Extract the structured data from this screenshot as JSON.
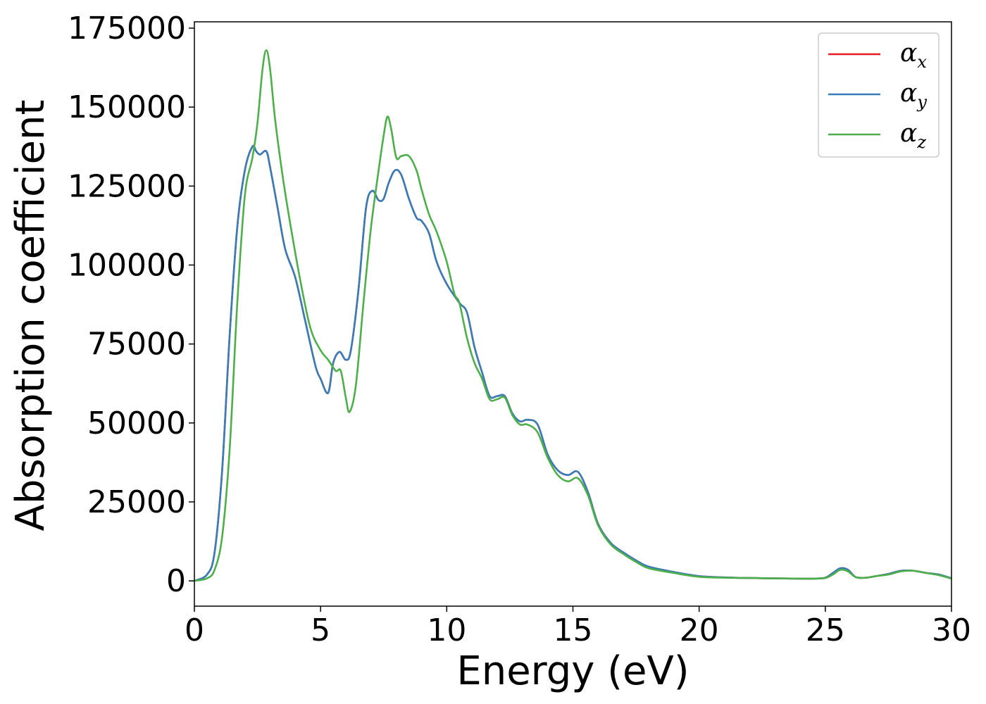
{
  "chart_data": {
    "type": "line",
    "title": "",
    "xlabel": "Energy (eV)",
    "ylabel": "Absorption coefficient",
    "xlim": [
      0,
      30
    ],
    "ylim": [
      -8000,
      177000
    ],
    "xticks": [
      0,
      5,
      10,
      15,
      20,
      25,
      30
    ],
    "yticks": [
      0,
      25000,
      50000,
      75000,
      100000,
      125000,
      150000,
      175000
    ],
    "grid": false,
    "legend_position": "top-right",
    "series": [
      {
        "name": "α_x",
        "legend_symbol": "α",
        "legend_subscript": "x",
        "color": "#e41a1c",
        "x": [
          0,
          0.5,
          0.8,
          1.1,
          1.4,
          1.7,
          2.0,
          2.3,
          2.45,
          2.6,
          2.85,
          3.0,
          3.3,
          3.6,
          4.0,
          4.4,
          4.8,
          5.0,
          5.3,
          5.5,
          5.75,
          6.0,
          6.2,
          6.5,
          6.8,
          7.05,
          7.3,
          7.5,
          7.7,
          7.95,
          8.2,
          8.5,
          8.8,
          9.0,
          9.3,
          9.6,
          10.0,
          10.5,
          10.8,
          11.1,
          11.4,
          11.7,
          12.0,
          12.3,
          12.6,
          12.9,
          13.2,
          13.6,
          14.0,
          14.4,
          14.8,
          15.2,
          15.6,
          16.0,
          16.5,
          17.0,
          17.5,
          18.0,
          19.0,
          20.0,
          21.0,
          22.0,
          23.0,
          24.0,
          24.5,
          25.0,
          25.3,
          25.6,
          25.9,
          26.2,
          26.6,
          27.0,
          27.5,
          28.0,
          28.5,
          29.0,
          29.5,
          30.0
        ],
        "values": [
          0,
          2000,
          9000,
          35000,
          78000,
          112000,
          130000,
          137500,
          136000,
          135000,
          136000,
          131000,
          118000,
          105000,
          96000,
          82000,
          68000,
          64000,
          59500,
          69000,
          72500,
          70000,
          73000,
          92000,
          118000,
          123500,
          120500,
          121000,
          126000,
          130000,
          128500,
          121000,
          115000,
          114000,
          110000,
          101000,
          94000,
          88000,
          85000,
          74000,
          66000,
          58500,
          58500,
          58500,
          53000,
          50500,
          51000,
          49500,
          40000,
          35000,
          33500,
          34500,
          28000,
          18000,
          12000,
          9000,
          6500,
          4500,
          2800,
          1500,
          1100,
          900,
          800,
          700,
          700,
          1000,
          2500,
          4000,
          3500,
          1200,
          1000,
          1500,
          2200,
          3200,
          3200,
          2500,
          2000,
          800
        ]
      },
      {
        "name": "α_y",
        "legend_symbol": "α",
        "legend_subscript": "y",
        "color": "#377eb8",
        "x": [
          0,
          0.5,
          0.8,
          1.1,
          1.4,
          1.7,
          2.0,
          2.3,
          2.45,
          2.6,
          2.85,
          3.0,
          3.3,
          3.6,
          4.0,
          4.4,
          4.8,
          5.0,
          5.3,
          5.5,
          5.75,
          6.0,
          6.2,
          6.5,
          6.8,
          7.05,
          7.3,
          7.5,
          7.7,
          7.95,
          8.2,
          8.5,
          8.8,
          9.0,
          9.3,
          9.6,
          10.0,
          10.5,
          10.8,
          11.1,
          11.4,
          11.7,
          12.0,
          12.3,
          12.6,
          12.9,
          13.2,
          13.6,
          14.0,
          14.4,
          14.8,
          15.2,
          15.6,
          16.0,
          16.5,
          17.0,
          17.5,
          18.0,
          19.0,
          20.0,
          21.0,
          22.0,
          23.0,
          24.0,
          24.5,
          25.0,
          25.3,
          25.6,
          25.9,
          26.2,
          26.6,
          27.0,
          27.5,
          28.0,
          28.5,
          29.0,
          29.5,
          30.0
        ],
        "values": [
          0,
          2000,
          9000,
          35000,
          78000,
          112000,
          130000,
          137500,
          136000,
          135000,
          136000,
          131000,
          118000,
          105000,
          96000,
          82000,
          68000,
          64000,
          59500,
          69000,
          72500,
          70000,
          73000,
          92000,
          118000,
          123500,
          120500,
          121000,
          126000,
          130000,
          128500,
          121000,
          115000,
          114000,
          110000,
          101000,
          94000,
          88000,
          85000,
          74000,
          66000,
          58500,
          58500,
          58500,
          53000,
          50500,
          51000,
          49500,
          40000,
          35000,
          33500,
          34500,
          28000,
          18000,
          12000,
          9000,
          6500,
          4500,
          2800,
          1500,
          1100,
          900,
          800,
          700,
          700,
          1000,
          2500,
          4000,
          3500,
          1200,
          1000,
          1500,
          2200,
          3200,
          3200,
          2500,
          2000,
          800
        ]
      },
      {
        "name": "α_z",
        "legend_symbol": "α",
        "legend_subscript": "z",
        "color": "#4daf4a",
        "x": [
          0,
          0.5,
          0.8,
          1.1,
          1.4,
          1.7,
          2.0,
          2.3,
          2.5,
          2.7,
          2.85,
          3.0,
          3.2,
          3.5,
          3.8,
          4.2,
          4.6,
          5.0,
          5.3,
          5.6,
          5.8,
          6.0,
          6.15,
          6.4,
          6.7,
          7.0,
          7.3,
          7.5,
          7.65,
          7.8,
          8.0,
          8.2,
          8.5,
          8.8,
          9.0,
          9.3,
          9.6,
          10.0,
          10.3,
          10.5,
          10.8,
          11.1,
          11.4,
          11.7,
          12.0,
          12.3,
          12.6,
          12.9,
          13.2,
          13.6,
          14.0,
          14.4,
          14.8,
          15.2,
          15.6,
          16.0,
          16.5,
          17.0,
          17.5,
          18.0,
          19.0,
          20.0,
          21.0,
          22.0,
          23.0,
          24.0,
          24.5,
          25.0,
          25.3,
          25.6,
          25.9,
          26.2,
          26.6,
          27.0,
          27.5,
          28.0,
          28.5,
          29.0,
          29.5,
          30.0
        ],
        "values": [
          0,
          800,
          3500,
          14000,
          42000,
          88000,
          122000,
          134000,
          145000,
          162000,
          168000,
          162000,
          146000,
          128000,
          113000,
          95000,
          80000,
          73000,
          70000,
          66500,
          66500,
          58000,
          53500,
          62000,
          88000,
          112000,
          130000,
          141000,
          147000,
          143000,
          134000,
          134500,
          134500,
          130000,
          124000,
          116000,
          110500,
          101000,
          91000,
          88000,
          77000,
          69000,
          64000,
          57500,
          57500,
          58000,
          52500,
          49500,
          49500,
          47000,
          39000,
          33500,
          31500,
          32500,
          27000,
          17500,
          11500,
          8500,
          6000,
          4000,
          2500,
          1300,
          1000,
          900,
          800,
          700,
          700,
          900,
          2000,
          3500,
          3000,
          1200,
          1000,
          1500,
          2000,
          3000,
          3200,
          2500,
          1800,
          700
        ]
      }
    ]
  }
}
